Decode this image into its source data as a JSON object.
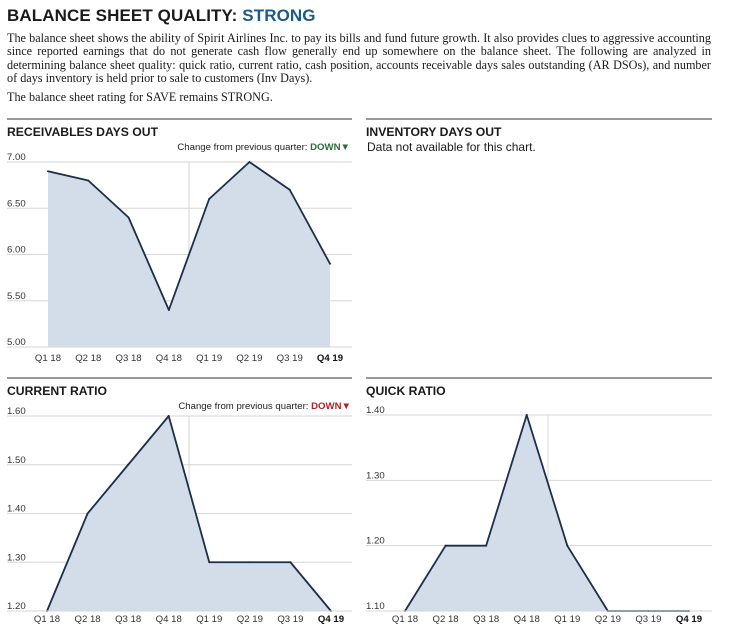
{
  "header": {
    "title_prefix": "BALANCE SHEET QUALITY: ",
    "rating": "STRONG",
    "paragraph1": "The balance sheet shows the ability of Spirit Airlines Inc. to pay its bills and fund future growth. It also provides clues to aggressive accounting since reported earnings that do not generate cash flow generally end up somewhere on the balance sheet. The following are analyzed in determining balance sheet quality: quick ratio, current ratio, cash position, accounts receivable days sales outstanding (AR DSOs), and number of days inventory is held prior to sale to customers (Inv Days).",
    "paragraph2": "The balance sheet rating for SAVE remains STRONG."
  },
  "colors": {
    "line": "#1b2e4a",
    "fill": "#d3dde9",
    "grid": "#d6d6d6",
    "rule": "#333333",
    "down_green": "#2d6b3c",
    "down_red": "#b32020"
  },
  "chart_data": [
    {
      "type": "area",
      "title": "RECEIVABLES DAYS OUT",
      "change_label": "Change from previous quarter: ",
      "change_direction": "DOWN",
      "change_color": "green",
      "categories": [
        "Q1 18",
        "Q2 18",
        "Q3 18",
        "Q4 18",
        "Q1 19",
        "Q2 19",
        "Q3 19",
        "Q4 19"
      ],
      "highlight_category": "Q4 19",
      "values": [
        6.9,
        6.8,
        6.4,
        5.4,
        6.6,
        7.0,
        6.7,
        5.9
      ],
      "ylim": [
        5.0,
        7.0
      ],
      "yticks": [
        5.0,
        5.5,
        6.0,
        6.5,
        7.0
      ],
      "ytick_labels": [
        "5.00",
        "5.50",
        "6.00",
        "6.50",
        "7.00"
      ],
      "grid": true
    },
    {
      "type": "area",
      "title": "INVENTORY DAYS OUT",
      "message": "Data not available for this chart."
    },
    {
      "type": "area",
      "title": "CURRENT RATIO",
      "change_label": "Change from previous quarter: ",
      "change_direction": "DOWN",
      "change_color": "red",
      "categories": [
        "Q1 18",
        "Q2 18",
        "Q3 18",
        "Q4 18",
        "Q1 19",
        "Q2 19",
        "Q3 19",
        "Q4 19"
      ],
      "highlight_category": "Q4 19",
      "values": [
        1.2,
        1.4,
        1.5,
        1.6,
        1.3,
        1.3,
        1.3,
        1.2
      ],
      "ylim": [
        1.2,
        1.6
      ],
      "yticks": [
        1.2,
        1.3,
        1.4,
        1.5,
        1.6
      ],
      "ytick_labels": [
        "1.20",
        "1.30",
        "1.40",
        "1.50",
        "1.60"
      ],
      "grid": true
    },
    {
      "type": "area",
      "title": "QUICK RATIO",
      "categories": [
        "Q1 18",
        "Q2 18",
        "Q3 18",
        "Q4 18",
        "Q1 19",
        "Q2 19",
        "Q3 19",
        "Q4 19"
      ],
      "highlight_category": "Q4 19",
      "values": [
        1.1,
        1.2,
        1.2,
        1.4,
        1.2,
        1.1,
        1.1,
        1.1
      ],
      "ylim": [
        1.1,
        1.4
      ],
      "yticks": [
        1.1,
        1.2,
        1.3,
        1.4
      ],
      "ytick_labels": [
        "1.10",
        "1.20",
        "1.30",
        "1.40"
      ],
      "grid": true
    }
  ]
}
